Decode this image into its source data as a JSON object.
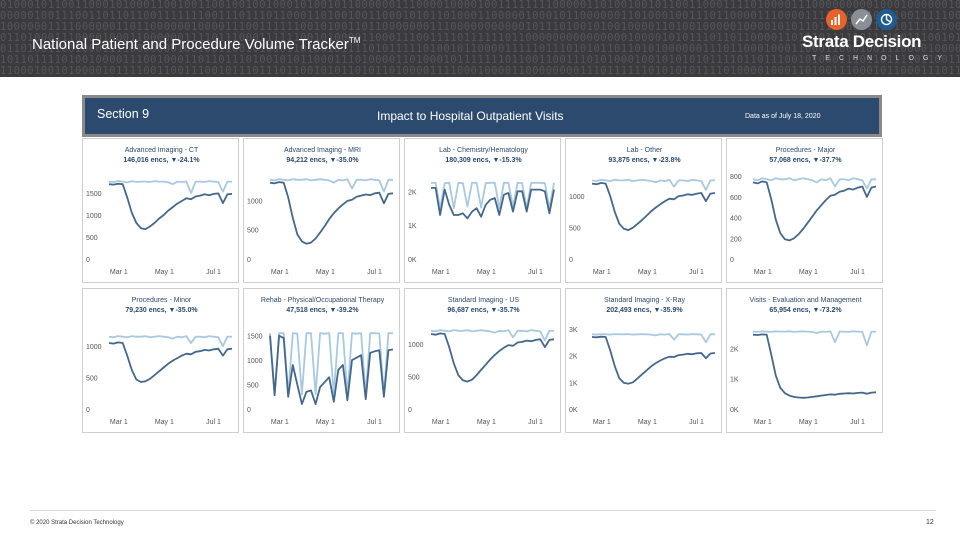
{
  "slide": {
    "title": "National Patient and Procedure Volume Tracker",
    "title_mark": "TM",
    "brand_name": "Strata Decision",
    "brand_sub": "TECHNOLOGY",
    "brand_icons": [
      "bar-chart-icon",
      "trend-line-icon",
      "pie-chart-icon"
    ],
    "brand_icon_colors": [
      "#e8622a",
      "#8a8f96",
      "#1f5b8e"
    ],
    "copyright": "© 2020 Strata Decision Technology",
    "page_number": "12"
  },
  "dashboard": {
    "section": "Section 9",
    "title": "Impact to Hospital Outpatient Visits",
    "date": "Data as of July 18, 2020"
  },
  "colors": {
    "header_bg": "#3b3b3f",
    "banner_bg": "#2c4a6e",
    "line_2019": "#a9c9e0",
    "line_2020": "#44688c"
  },
  "chart_data": [
    {
      "type": "line",
      "title": "Advanced Imaging - CT",
      "subtitle": "146,016 encs, ▼-24.1%",
      "x_ticks": [
        "Mar 1",
        "May 1",
        "Jul 1"
      ],
      "y_ticks": [
        "0",
        "500",
        "1000",
        "1500"
      ],
      "ylim": [
        0,
        2000
      ],
      "series": [
        {
          "values": [
            1760,
            1750,
            1770,
            1760,
            1740,
            1770,
            1750,
            1760,
            1760,
            1750,
            1770,
            1760,
            1760,
            1740,
            1700,
            1760,
            1750,
            1760,
            1500,
            1760,
            1760,
            1750,
            1770,
            1760,
            1750,
            1530,
            1760,
            1760
          ]
        },
        {
          "values": [
            1700,
            1690,
            1710,
            1700,
            1400,
            1050,
            820,
            700,
            680,
            740,
            820,
            920,
            1000,
            1100,
            1180,
            1260,
            1320,
            1380,
            1360,
            1420,
            1440,
            1470,
            1450,
            1480,
            1490,
            1270,
            1470,
            1480
          ]
        }
      ]
    },
    {
      "type": "line",
      "title": "Advanced Imaging - MRI",
      "subtitle": "94,212 encs, ▼-35.0%",
      "x_ticks": [
        "Mar 1",
        "May 1",
        "Jul 1"
      ],
      "y_ticks": [
        "0",
        "500",
        "1000"
      ],
      "ylim": [
        0,
        1500
      ],
      "series": [
        {
          "values": [
            1350,
            1340,
            1360,
            1350,
            1340,
            1360,
            1350,
            1350,
            1360,
            1340,
            1350,
            1360,
            1350,
            1340,
            1300,
            1350,
            1340,
            1360,
            1200,
            1350,
            1350,
            1340,
            1360,
            1350,
            1340,
            1150,
            1350,
            1350
          ]
        },
        {
          "values": [
            1300,
            1290,
            1310,
            1300,
            1050,
            700,
            420,
            300,
            260,
            280,
            350,
            450,
            560,
            680,
            780,
            860,
            930,
            990,
            1010,
            1060,
            1080,
            1100,
            1090,
            1120,
            1130,
            950,
            1110,
            1120
          ]
        }
      ]
    },
    {
      "type": "line",
      "title": "Lab - Chemistry/Hematology",
      "subtitle": "180,309 encs, ▼-15.3%",
      "x_ticks": [
        "Mar 1",
        "May 1",
        "Jul 1"
      ],
      "y_ticks": [
        "0K",
        "1K",
        "2K"
      ],
      "ylim": [
        0,
        2600
      ],
      "series": [
        {
          "values": [
            2250,
            2250,
            1500,
            2240,
            2250,
            1500,
            2250,
            2240,
            1550,
            2250,
            2250,
            1520,
            2240,
            2250,
            2250,
            1500,
            2250,
            2250,
            1550,
            2250,
            2240,
            1500,
            2250,
            2250,
            2250,
            2240,
            1500,
            2250
          ]
        },
        {
          "values": [
            2100,
            2100,
            1300,
            2050,
            1600,
            1300,
            1300,
            1350,
            1200,
            1400,
            1500,
            1250,
            1600,
            1750,
            1800,
            1300,
            1900,
            1950,
            1400,
            2000,
            2000,
            1400,
            2050,
            2050,
            2050,
            2000,
            1350,
            2050
          ]
        }
      ]
    },
    {
      "type": "line",
      "title": "Lab - Other",
      "subtitle": "93,875 encs, ▼-23.8%",
      "x_ticks": [
        "Mar 1",
        "May 1",
        "Jul 1"
      ],
      "y_ticks": [
        "0",
        "500",
        "1000"
      ],
      "ylim": [
        0,
        1400
      ],
      "series": [
        {
          "values": [
            1250,
            1240,
            1260,
            1250,
            1240,
            1260,
            1250,
            1250,
            1260,
            1240,
            1250,
            1260,
            1250,
            1240,
            1220,
            1250,
            1240,
            1260,
            1150,
            1250,
            1250,
            1240,
            1260,
            1250,
            1240,
            1100,
            1250,
            1250
          ]
        },
        {
          "values": [
            1200,
            1190,
            1210,
            1200,
            1000,
            750,
            560,
            480,
            460,
            500,
            560,
            620,
            690,
            760,
            820,
            870,
            920,
            960,
            950,
            1000,
            1010,
            1030,
            1020,
            1040,
            1050,
            920,
            1040,
            1050
          ]
        }
      ]
    },
    {
      "type": "line",
      "title": "Procedures - Major",
      "subtitle": "57,068 encs, ▼-37.7%",
      "x_ticks": [
        "Mar 1",
        "May 1",
        "Jul 1"
      ],
      "y_ticks": [
        "0",
        "200",
        "400",
        "600",
        "800"
      ],
      "ylim": [
        0,
        850
      ],
      "series": [
        {
          "values": [
            770,
            760,
            780,
            770,
            760,
            780,
            770,
            770,
            780,
            760,
            770,
            780,
            770,
            760,
            740,
            770,
            760,
            780,
            700,
            770,
            770,
            760,
            780,
            770,
            760,
            680,
            770,
            770
          ]
        },
        {
          "values": [
            740,
            730,
            750,
            740,
            580,
            380,
            250,
            190,
            180,
            200,
            240,
            290,
            350,
            410,
            470,
            520,
            570,
            610,
            620,
            650,
            660,
            680,
            670,
            690,
            700,
            600,
            690,
            700
          ]
        }
      ]
    },
    {
      "type": "line",
      "title": "Procedures - Minor",
      "subtitle": "79,230 encs, ▼-35.0%",
      "x_ticks": [
        "Mar 1",
        "May 1",
        "Jul 1"
      ],
      "y_ticks": [
        "0",
        "500",
        "1000"
      ],
      "ylim": [
        0,
        1400
      ],
      "series": [
        {
          "values": [
            1150,
            1140,
            1160,
            1150,
            1140,
            1160,
            1150,
            1150,
            1160,
            1140,
            1150,
            1160,
            1150,
            1140,
            1120,
            1150,
            1140,
            1160,
            1050,
            1150,
            1150,
            1140,
            1160,
            1150,
            1140,
            1000,
            1150,
            1150
          ]
        },
        {
          "values": [
            1050,
            1040,
            1060,
            1050,
            850,
            620,
            470,
            430,
            440,
            480,
            540,
            600,
            660,
            720,
            770,
            810,
            850,
            880,
            870,
            910,
            920,
            940,
            930,
            950,
            960,
            850,
            950,
            960
          ]
        }
      ]
    },
    {
      "type": "line",
      "title": "Rehab - Physical/Occupational Therapy",
      "subtitle": "47,518 encs, ▼-39.2%",
      "x_ticks": [
        "Mar 1",
        "May 1",
        "Jul 1"
      ],
      "y_ticks": [
        "0",
        "500",
        "1000",
        "1500"
      ],
      "ylim": [
        0,
        1800
      ],
      "series": [
        {
          "values": [
            1550,
            300,
            1550,
            1550,
            300,
            1550,
            1540,
            300,
            1550,
            1550,
            300,
            1550,
            1540,
            1550,
            300,
            1550,
            1550,
            300,
            1550,
            1540,
            1550,
            300,
            1550,
            1550,
            1540,
            300,
            1550,
            1550
          ]
        },
        {
          "values": [
            1500,
            280,
            1500,
            1450,
            250,
            900,
            500,
            100,
            350,
            380,
            100,
            450,
            550,
            650,
            150,
            800,
            900,
            180,
            1000,
            1050,
            1100,
            200,
            1150,
            1180,
            1200,
            250,
            1200,
            1220
          ]
        }
      ]
    },
    {
      "type": "line",
      "title": "Standard Imaging - US",
      "subtitle": "96,687 encs, ▼-35.7%",
      "x_ticks": [
        "Mar 1",
        "May 1",
        "Jul 1"
      ],
      "y_ticks": [
        "0",
        "500",
        "1000"
      ],
      "ylim": [
        0,
        1350
      ],
      "series": [
        {
          "values": [
            1200,
            1190,
            1210,
            1200,
            1190,
            1210,
            1200,
            1200,
            1210,
            1190,
            1200,
            1210,
            1200,
            1190,
            1170,
            1200,
            1190,
            1210,
            1100,
            1200,
            1200,
            1190,
            1210,
            1200,
            1190,
            1050,
            1200,
            1200
          ]
        },
        {
          "values": [
            1150,
            1140,
            1160,
            1150,
            950,
            700,
            520,
            440,
            420,
            450,
            520,
            600,
            680,
            760,
            830,
            890,
            940,
            980,
            970,
            1020,
            1030,
            1050,
            1040,
            1060,
            1070,
            950,
            1060,
            1070
          ]
        }
      ]
    },
    {
      "type": "line",
      "title": "Standard Imaging - X-Ray",
      "subtitle": "202,493 encs, ▼-35.9%",
      "x_ticks": [
        "Mar 1",
        "May 1",
        "Jul 1"
      ],
      "y_ticks": [
        "0K",
        "1K",
        "2K",
        "3K"
      ],
      "ylim": [
        0,
        3300
      ],
      "series": [
        {
          "values": [
            2800,
            2790,
            2810,
            2800,
            2790,
            2810,
            2800,
            2800,
            2810,
            2790,
            2800,
            2810,
            2800,
            2790,
            2760,
            2800,
            2790,
            2810,
            2600,
            2800,
            2800,
            2790,
            2810,
            2800,
            2790,
            2500,
            2800,
            2800
          ]
        },
        {
          "values": [
            2700,
            2690,
            2710,
            2700,
            2200,
            1600,
            1150,
            980,
            950,
            1000,
            1150,
            1300,
            1450,
            1600,
            1720,
            1820,
            1900,
            1960,
            1950,
            2020,
            2040,
            2070,
            2050,
            2090,
            2100,
            1900,
            2080,
            2100
          ]
        }
      ]
    },
    {
      "type": "line",
      "title": "Visits - Evaluation and Management",
      "subtitle": "65,954 encs, ▼-73.2%",
      "x_ticks": [
        "Mar 1",
        "May 1",
        "Jul 1"
      ],
      "y_ticks": [
        "0K",
        "1K",
        "2K"
      ],
      "ylim": [
        0,
        2900
      ],
      "series": [
        {
          "values": [
            2550,
            2540,
            2560,
            2550,
            2540,
            2560,
            2550,
            2550,
            2560,
            2540,
            2550,
            2560,
            2550,
            2540,
            2500,
            2550,
            2540,
            2560,
            2200,
            2550,
            2550,
            2540,
            2560,
            2550,
            2540,
            2100,
            2550,
            2550
          ]
        },
        {
          "values": [
            2450,
            2440,
            2460,
            2450,
            1800,
            1100,
            700,
            520,
            440,
            400,
            380,
            370,
            380,
            400,
            420,
            440,
            460,
            480,
            470,
            500,
            510,
            520,
            510,
            530,
            540,
            500,
            540,
            550
          ]
        }
      ]
    }
  ]
}
